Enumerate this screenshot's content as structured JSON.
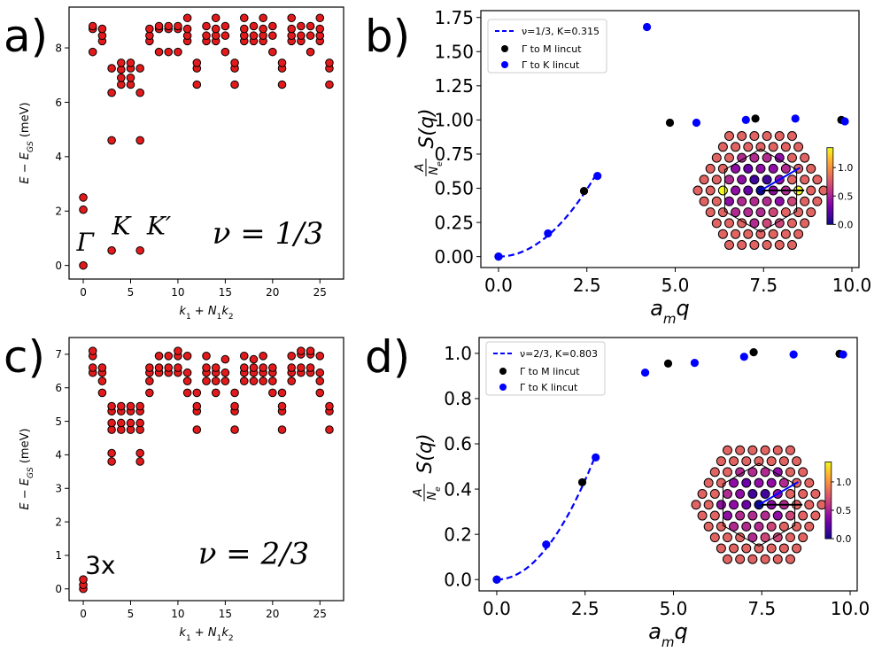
{
  "panels": {
    "a": {
      "label": "a)"
    },
    "b": {
      "label": "b)"
    },
    "c": {
      "label": "c)"
    },
    "d": {
      "label": "d)"
    }
  },
  "chart_data": [
    {
      "id": "a",
      "type": "scatter",
      "xlabel": "k_1 + N_1 k_2",
      "ylabel": "E − E_GS (meV)",
      "xlim": [
        -1.5,
        27.5
      ],
      "ylim": [
        -0.5,
        9.5
      ],
      "xticks": [
        0,
        5,
        10,
        15,
        20,
        25
      ],
      "yticks": [
        0,
        2,
        4,
        6,
        8
      ],
      "marker_color": "#e31a1c",
      "annotations": [
        {
          "text": "Γ",
          "x": 0.2,
          "y": 0.55
        },
        {
          "text": "K",
          "x": 4.0,
          "y": 1.15
        },
        {
          "text": "K′",
          "x": 8.0,
          "y": 1.15
        },
        {
          "text": "ν = 1/3",
          "x": 19.5,
          "y": 0.8
        }
      ],
      "points": [
        [
          0,
          0
        ],
        [
          0,
          2.05
        ],
        [
          0,
          2.5
        ],
        [
          1,
          7.85
        ],
        [
          1,
          8.7
        ],
        [
          1,
          8.8
        ],
        [
          2,
          8.25
        ],
        [
          2,
          8.45
        ],
        [
          2,
          8.7
        ],
        [
          3,
          0.55
        ],
        [
          3,
          4.6
        ],
        [
          3,
          6.35
        ],
        [
          3,
          7.25
        ],
        [
          4,
          6.65
        ],
        [
          4,
          6.9
        ],
        [
          4,
          7.2
        ],
        [
          4,
          7.45
        ],
        [
          5,
          6.65
        ],
        [
          5,
          6.9
        ],
        [
          5,
          7.25
        ],
        [
          5,
          7.45
        ],
        [
          6,
          0.55
        ],
        [
          6,
          4.6
        ],
        [
          6,
          6.35
        ],
        [
          6,
          7.25
        ],
        [
          7,
          8.25
        ],
        [
          7,
          8.45
        ],
        [
          7,
          8.7
        ],
        [
          8,
          7.85
        ],
        [
          8,
          8.7
        ],
        [
          8,
          8.8
        ],
        [
          9,
          7.85
        ],
        [
          9,
          8.7
        ],
        [
          9,
          8.8
        ],
        [
          10,
          7.85
        ],
        [
          10,
          8.7
        ],
        [
          10,
          8.8
        ],
        [
          11,
          8.25
        ],
        [
          11,
          8.45
        ],
        [
          11,
          8.7
        ],
        [
          11,
          9.1
        ],
        [
          12,
          6.65
        ],
        [
          12,
          7.25
        ],
        [
          12,
          7.45
        ],
        [
          13,
          8.25
        ],
        [
          13,
          8.45
        ],
        [
          13,
          8.8
        ],
        [
          14,
          8.25
        ],
        [
          14,
          8.45
        ],
        [
          14,
          8.7
        ],
        [
          14,
          9.1
        ],
        [
          15,
          7.85
        ],
        [
          15,
          8.45
        ],
        [
          15,
          8.8
        ],
        [
          16,
          6.65
        ],
        [
          16,
          7.25
        ],
        [
          16,
          7.45
        ],
        [
          17,
          8.25
        ],
        [
          17,
          8.45
        ],
        [
          17,
          8.7
        ],
        [
          17,
          9.1
        ],
        [
          18,
          8.25
        ],
        [
          18,
          8.45
        ],
        [
          18,
          8.8
        ],
        [
          19,
          8.25
        ],
        [
          19,
          8.45
        ],
        [
          19,
          8.7
        ],
        [
          19,
          9.1
        ],
        [
          20,
          7.85
        ],
        [
          20,
          8.45
        ],
        [
          20,
          8.8
        ],
        [
          21,
          6.65
        ],
        [
          21,
          7.25
        ],
        [
          21,
          7.45
        ],
        [
          22,
          8.25
        ],
        [
          22,
          8.45
        ],
        [
          22,
          8.7
        ],
        [
          22,
          9.1
        ],
        [
          23,
          8.25
        ],
        [
          23,
          8.45
        ],
        [
          23,
          8.8
        ],
        [
          24,
          7.85
        ],
        [
          24,
          8.45
        ],
        [
          24,
          8.8
        ],
        [
          25,
          8.25
        ],
        [
          25,
          8.45
        ],
        [
          25,
          8.7
        ],
        [
          25,
          9.1
        ],
        [
          26,
          6.65
        ],
        [
          26,
          7.25
        ],
        [
          26,
          7.45
        ]
      ]
    },
    {
      "id": "b",
      "type": "scatter",
      "xlabel": "a_m q",
      "ylabel": "(A/N_e) S(q)",
      "xlim": [
        -0.5,
        10.2
      ],
      "ylim": [
        -0.08,
        1.8
      ],
      "xticks": [
        0.0,
        2.5,
        5.0,
        7.5,
        10.0
      ],
      "xtick_labels": [
        "0.0",
        "2.5",
        "5.0",
        "7.5",
        "10.0"
      ],
      "yticks": [
        0.0,
        0.25,
        0.5,
        0.75,
        1.0,
        1.25,
        1.5,
        1.75
      ],
      "ytick_labels": [
        "0.00",
        "0.25",
        "0.50",
        "0.75",
        "1.00",
        "1.25",
        "1.50",
        "1.75"
      ],
      "fit": {
        "name": "ν=1/3, K=0.315",
        "K": 0.315,
        "x": [
          0.0,
          2.8
        ]
      },
      "series": [
        {
          "name": "Γ to M lincut",
          "color": "#000000",
          "points": [
            [
              0.0,
              0.0
            ],
            [
              2.42,
              0.48
            ],
            [
              4.85,
              0.98
            ],
            [
              7.27,
              1.01
            ],
            [
              9.7,
              1.0
            ]
          ]
        },
        {
          "name": "Γ to K lincut",
          "color": "#0000ff",
          "points": [
            [
              0.0,
              0.0
            ],
            [
              1.4,
              0.17
            ],
            [
              2.8,
              0.59
            ],
            [
              4.2,
              1.68
            ],
            [
              5.6,
              0.98
            ],
            [
              7.0,
              1.0
            ],
            [
              8.4,
              1.01
            ],
            [
              9.8,
              0.99
            ]
          ]
        }
      ],
      "inset": {
        "colorbar_ticks": [
          "0.0",
          "0.5",
          "1.0"
        ]
      }
    },
    {
      "id": "c",
      "type": "scatter",
      "xlabel": "k_1 + N_1 k_2",
      "ylabel": "E − E_GS (meV)",
      "xlim": [
        -1.5,
        27.5
      ],
      "ylim": [
        -0.35,
        7.5
      ],
      "xticks": [
        0,
        5,
        10,
        15,
        20,
        25
      ],
      "yticks": [
        0,
        1,
        2,
        3,
        4,
        5,
        6,
        7
      ],
      "marker_color": "#e31a1c",
      "annotations": [
        {
          "text": "3x",
          "x": 1.8,
          "y": 0.45
        },
        {
          "text": "ν = 2/3",
          "x": 18.0,
          "y": 0.75
        }
      ],
      "points": [
        [
          0,
          0
        ],
        [
          0,
          0.12
        ],
        [
          0,
          0.28
        ],
        [
          1,
          6.45
        ],
        [
          1,
          6.6
        ],
        [
          1,
          6.95
        ],
        [
          1,
          7.1
        ],
        [
          2,
          5.85
        ],
        [
          2,
          6.2
        ],
        [
          2,
          6.45
        ],
        [
          2,
          6.6
        ],
        [
          3,
          3.8
        ],
        [
          3,
          4.05
        ],
        [
          3,
          4.75
        ],
        [
          3,
          4.95
        ],
        [
          3,
          5.3
        ],
        [
          3,
          5.45
        ],
        [
          4,
          4.75
        ],
        [
          4,
          4.95
        ],
        [
          4,
          5.3
        ],
        [
          4,
          5.45
        ],
        [
          5,
          4.75
        ],
        [
          5,
          4.95
        ],
        [
          5,
          5.3
        ],
        [
          5,
          5.45
        ],
        [
          6,
          3.8
        ],
        [
          6,
          4.05
        ],
        [
          6,
          4.75
        ],
        [
          6,
          4.95
        ],
        [
          6,
          5.3
        ],
        [
          6,
          5.45
        ],
        [
          7,
          5.85
        ],
        [
          7,
          6.2
        ],
        [
          7,
          6.45
        ],
        [
          7,
          6.6
        ],
        [
          8,
          6.45
        ],
        [
          8,
          6.6
        ],
        [
          8,
          6.95
        ],
        [
          9,
          6.45
        ],
        [
          9,
          6.6
        ],
        [
          9,
          6.95
        ],
        [
          10,
          6.45
        ],
        [
          10,
          6.6
        ],
        [
          10,
          6.95
        ],
        [
          10,
          7.1
        ],
        [
          11,
          5.85
        ],
        [
          11,
          6.2
        ],
        [
          11,
          6.45
        ],
        [
          11,
          6.95
        ],
        [
          12,
          4.75
        ],
        [
          12,
          5.3
        ],
        [
          12,
          5.45
        ],
        [
          12,
          5.85
        ],
        [
          13,
          6.2
        ],
        [
          13,
          6.45
        ],
        [
          13,
          6.6
        ],
        [
          13,
          6.95
        ],
        [
          14,
          5.85
        ],
        [
          14,
          6.2
        ],
        [
          14,
          6.45
        ],
        [
          14,
          6.6
        ],
        [
          15,
          6.2
        ],
        [
          15,
          6.45
        ],
        [
          15,
          6.85
        ],
        [
          16,
          4.75
        ],
        [
          16,
          5.3
        ],
        [
          16,
          5.45
        ],
        [
          16,
          5.85
        ],
        [
          17,
          6.2
        ],
        [
          17,
          6.45
        ],
        [
          17,
          6.6
        ],
        [
          17,
          6.95
        ],
        [
          18,
          6.2
        ],
        [
          18,
          6.45
        ],
        [
          18,
          6.6
        ],
        [
          18,
          6.85
        ],
        [
          19,
          6.2
        ],
        [
          19,
          6.45
        ],
        [
          19,
          6.6
        ],
        [
          19,
          6.95
        ],
        [
          20,
          5.85
        ],
        [
          20,
          6.2
        ],
        [
          20,
          6.45
        ],
        [
          20,
          6.6
        ],
        [
          21,
          4.75
        ],
        [
          21,
          5.3
        ],
        [
          21,
          5.45
        ],
        [
          21,
          5.85
        ],
        [
          22,
          6.2
        ],
        [
          22,
          6.45
        ],
        [
          22,
          6.6
        ],
        [
          22,
          6.95
        ],
        [
          23,
          6.45
        ],
        [
          23,
          6.6
        ],
        [
          23,
          7.0
        ],
        [
          23,
          7.1
        ],
        [
          24,
          6.45
        ],
        [
          24,
          6.6
        ],
        [
          24,
          7.0
        ],
        [
          24,
          7.1
        ],
        [
          25,
          5.85
        ],
        [
          25,
          6.2
        ],
        [
          25,
          6.45
        ],
        [
          25,
          6.95
        ],
        [
          26,
          4.75
        ],
        [
          26,
          5.3
        ],
        [
          26,
          5.45
        ]
      ]
    },
    {
      "id": "d",
      "type": "scatter",
      "xlabel": "a_m q",
      "ylabel": "(A/N_e) S(q)",
      "xlim": [
        -0.5,
        10.2
      ],
      "ylim": [
        -0.05,
        1.07
      ],
      "xticks": [
        0.0,
        2.5,
        5.0,
        7.5,
        10.0
      ],
      "xtick_labels": [
        "0.0",
        "2.5",
        "5.0",
        "7.5",
        "10.0"
      ],
      "yticks": [
        0.0,
        0.2,
        0.4,
        0.6,
        0.8,
        1.0
      ],
      "ytick_labels": [
        "0.0",
        "0.2",
        "0.4",
        "0.6",
        "0.8",
        "1.0"
      ],
      "fit": {
        "name": "ν=2/3, K=0.803",
        "K": 0.803,
        "x": [
          0.0,
          2.8
        ]
      },
      "series": [
        {
          "name": "Γ to M lincut",
          "color": "#000000",
          "points": [
            [
              0.0,
              0.0
            ],
            [
              2.42,
              0.43
            ],
            [
              4.85,
              0.955
            ],
            [
              7.27,
              1.005
            ],
            [
              9.7,
              0.998
            ]
          ]
        },
        {
          "name": "Γ to K lincut",
          "color": "#0000ff",
          "points": [
            [
              0.0,
              0.0
            ],
            [
              1.4,
              0.155
            ],
            [
              2.8,
              0.54
            ],
            [
              4.2,
              0.915
            ],
            [
              5.6,
              0.958
            ],
            [
              7.0,
              0.985
            ],
            [
              8.4,
              0.995
            ],
            [
              9.8,
              0.995
            ]
          ]
        }
      ],
      "inset": {
        "colorbar_ticks": [
          "0.0",
          "0.5",
          "1.0"
        ]
      }
    }
  ]
}
